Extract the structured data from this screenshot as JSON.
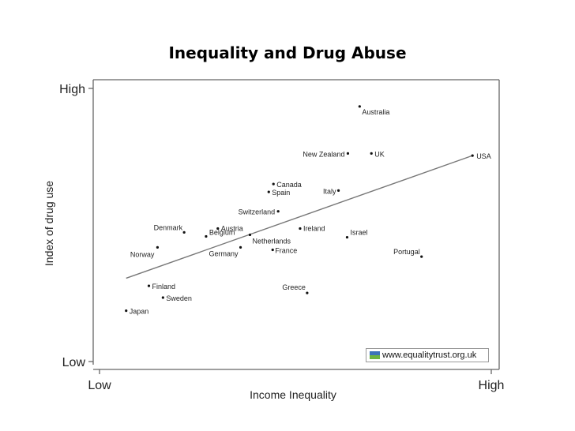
{
  "chart_data": {
    "type": "scatter",
    "title": "Inequality and Drug Abuse",
    "xlabel": "Income Inequality",
    "ylabel": "Index of drug use",
    "x_tick_labels": [
      "Low",
      "High"
    ],
    "y_tick_labels": [
      "Low",
      "High"
    ],
    "xlim": [
      0,
      1
    ],
    "ylim": [
      0,
      1
    ],
    "grid": false,
    "points": [
      {
        "label": "Australia",
        "x": 0.664,
        "y": 0.934
      },
      {
        "label": "New Zealand",
        "x": 0.634,
        "y": 0.762
      },
      {
        "label": "UK",
        "x": 0.694,
        "y": 0.762
      },
      {
        "label": "USA",
        "x": 0.952,
        "y": 0.754
      },
      {
        "label": "Canada",
        "x": 0.444,
        "y": 0.65
      },
      {
        "label": "Spain",
        "x": 0.432,
        "y": 0.621
      },
      {
        "label": "Italy",
        "x": 0.61,
        "y": 0.626
      },
      {
        "label": "Switzerland",
        "x": 0.456,
        "y": 0.55
      },
      {
        "label": "Denmark",
        "x": 0.216,
        "y": 0.473
      },
      {
        "label": "Austria",
        "x": 0.302,
        "y": 0.487
      },
      {
        "label": "Belgium",
        "x": 0.272,
        "y": 0.458
      },
      {
        "label": "Netherlands",
        "x": 0.384,
        "y": 0.464
      },
      {
        "label": "Ireland",
        "x": 0.512,
        "y": 0.487
      },
      {
        "label": "Israel",
        "x": 0.632,
        "y": 0.455
      },
      {
        "label": "Norway",
        "x": 0.148,
        "y": 0.418
      },
      {
        "label": "Germany",
        "x": 0.36,
        "y": 0.418
      },
      {
        "label": "France",
        "x": 0.442,
        "y": 0.409
      },
      {
        "label": "Portugal",
        "x": 0.822,
        "y": 0.384
      },
      {
        "label": "Finland",
        "x": 0.126,
        "y": 0.277
      },
      {
        "label": "Greece",
        "x": 0.53,
        "y": 0.251
      },
      {
        "label": "Sweden",
        "x": 0.162,
        "y": 0.234
      },
      {
        "label": "Japan",
        "x": 0.068,
        "y": 0.186
      }
    ],
    "trend_line": {
      "x": [
        0.068,
        0.952
      ],
      "y": [
        0.305,
        0.754
      ]
    }
  },
  "watermark": {
    "text": "www.equalitytrust.org.uk"
  },
  "colors": {
    "point": "#111111",
    "line": "#777777",
    "axis": "#666666",
    "logo_top": "#3c73b8",
    "logo_bottom": "#6cb33f"
  }
}
